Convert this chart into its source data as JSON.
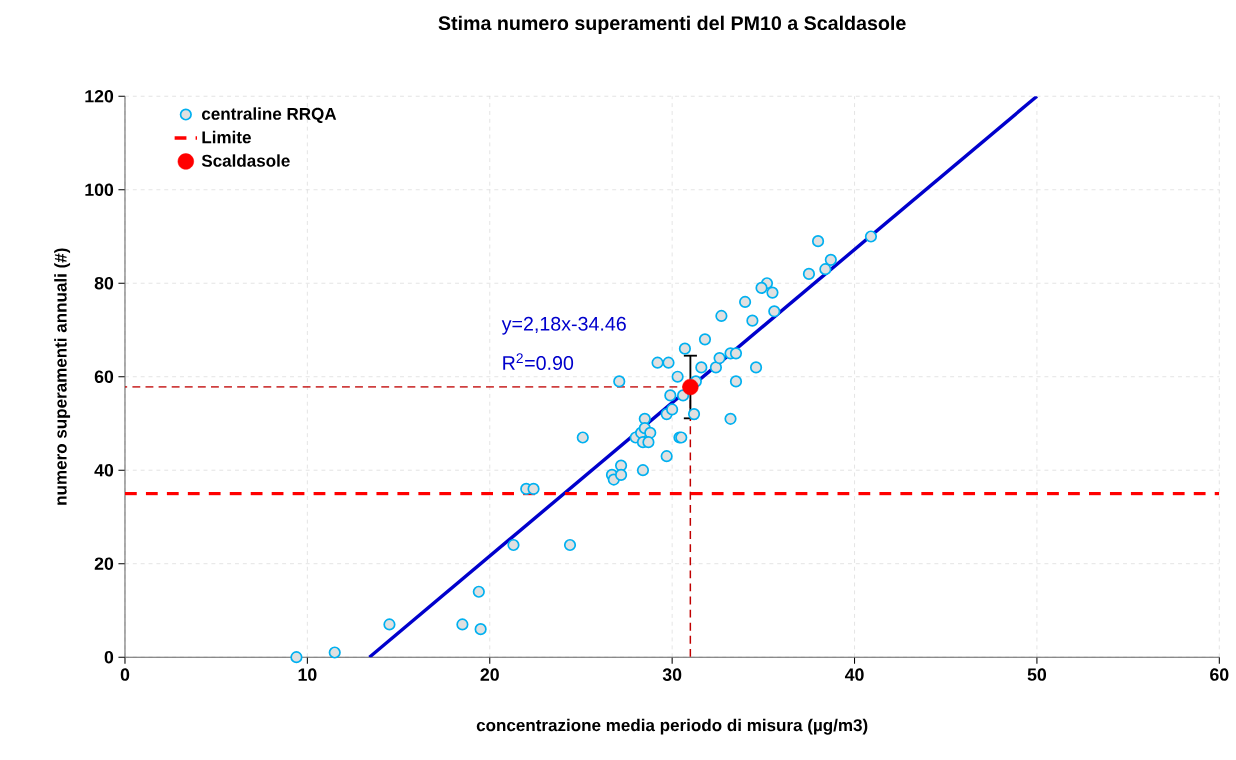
{
  "chart_data": {
    "type": "scatter",
    "title": "Stima numero superamenti del PM10 a Scaldasole",
    "xlabel": "concentrazione media periodo di misura (µg/m3)",
    "ylabel": "numero superamenti annuali (#)",
    "xlim": [
      0,
      60
    ],
    "xticks": [
      0,
      10,
      20,
      30,
      40,
      50,
      60
    ],
    "ylim": [
      0,
      120
    ],
    "yticks": [
      0,
      20,
      40,
      60,
      80,
      100,
      120
    ],
    "grid": true,
    "legend": "top left",
    "annotations": [
      "y=2,18x-34.46",
      "R$^{2}$=0.90"
    ],
    "ref_lines": [
      {
        "axis": "y",
        "value": 35,
        "label": "Limite",
        "color": "#ff0000",
        "line_style": "dashed"
      }
    ],
    "series": [
      {
        "name": "centraline RRQA",
        "color": "#00b0f0",
        "marker": "circle",
        "x": [
          9.4,
          11.5,
          14.5,
          18.5,
          19.4,
          19.5,
          21.3,
          22.0,
          22.4,
          24.4,
          25.1,
          26.7,
          26.8,
          27.1,
          27.2,
          27.2,
          28.4,
          28.0,
          28.3,
          28.5,
          28.5,
          28.8,
          28.4,
          28.7,
          29.7,
          29.7,
          29.9,
          30.0,
          29.2,
          29.8,
          30.3,
          30.4,
          30.5,
          30.6,
          30.7,
          31.2,
          31.3,
          31.6,
          31.8,
          32.4,
          32.6,
          33.2,
          33.5,
          33.2,
          33.5,
          34.6,
          32.7,
          34.4,
          38.0,
          40.9,
          38.7,
          38.4,
          37.5,
          35.2,
          34.9,
          35.5,
          34.0,
          35.6
        ],
        "values": [
          0,
          1,
          7,
          7,
          14,
          6,
          24,
          36,
          36,
          24,
          47,
          39,
          38,
          59,
          41,
          39,
          40,
          47,
          48,
          51,
          49,
          48,
          46,
          46,
          43,
          52,
          56,
          53,
          63,
          63,
          60,
          47,
          47,
          56,
          66,
          52,
          59,
          62,
          68,
          62,
          64,
          65,
          65,
          51,
          59,
          62,
          73,
          72,
          89,
          90,
          85,
          83,
          82,
          80,
          79,
          78,
          76,
          74
        ]
      },
      {
        "type": "line",
        "color": "#0000cc",
        "marker": "none",
        "line_style": "solid",
        "x": [
          13.4,
          50.0
        ],
        "values": [
          0,
          120
        ]
      },
      {
        "type": "line",
        "color": "#c00000",
        "marker": "none",
        "line_style": "dashed",
        "x": [
          31.0,
          0
        ],
        "values": [
          57.8,
          57.8
        ]
      },
      {
        "type": "line",
        "color": "#c00000",
        "marker": "none",
        "line_style": "dashed",
        "x": [
          31.0,
          31.0
        ],
        "values": [
          57.8,
          0
        ]
      },
      {
        "name": "Scaldasole",
        "color": "#ff0000",
        "marker": "circle",
        "x": [
          31.0
        ],
        "values": [
          57.8
        ],
        "errors": [
          6.7
        ]
      }
    ]
  }
}
